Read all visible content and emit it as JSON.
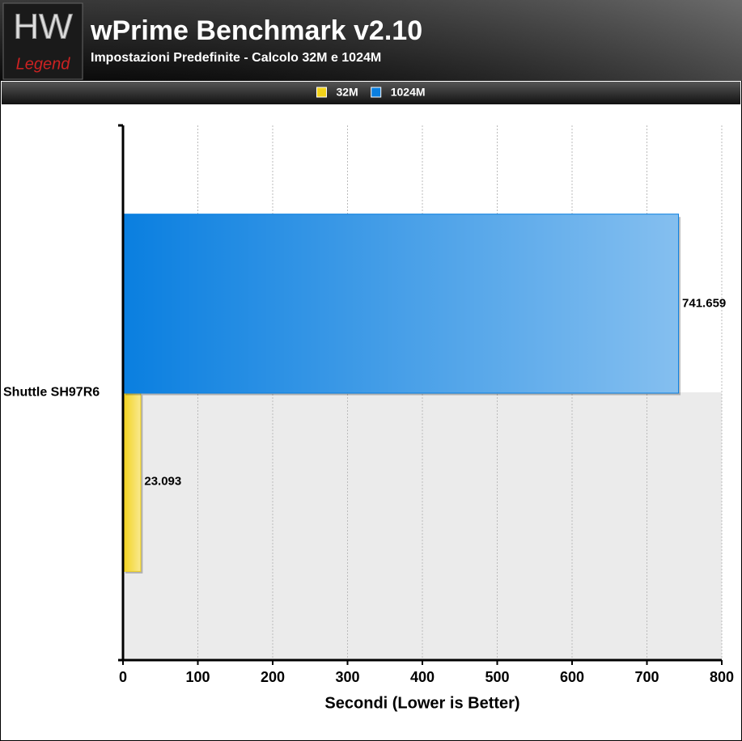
{
  "chart_data": {
    "type": "hbar",
    "logo_text": [
      "HW",
      "Legend"
    ],
    "title": "wPrime Benchmark v2.10",
    "subtitle": "Impostazioni Predefinite - Calcolo 32M e 1024M",
    "categories": [
      "Shuttle SH97R6"
    ],
    "series": [
      {
        "name": "32M",
        "color": "#f2d21a",
        "values": [
          23.093
        ]
      },
      {
        "name": "1024M",
        "color": "#0a7fe0",
        "values": [
          741.659
        ]
      }
    ],
    "xlabel": "Secondi (Lower is Better)",
    "xlim": [
      0,
      800
    ],
    "xticks": [
      0,
      100,
      200,
      300,
      400,
      500,
      600,
      700,
      800
    ],
    "grid": true
  }
}
